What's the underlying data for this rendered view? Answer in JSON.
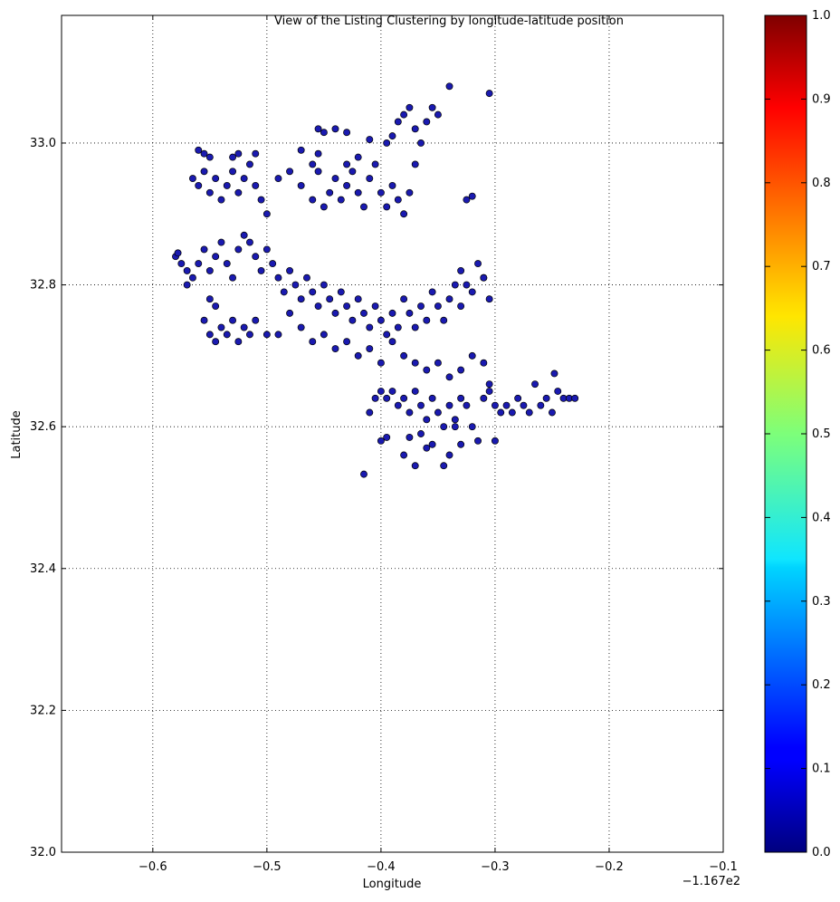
{
  "chart_data": {
    "type": "scatter",
    "title": "View of the Listing Clustering by longitude-latitude position",
    "xlabel": "Longitude",
    "ylabel": "Latitude",
    "x_offset_label": "−1.167e2",
    "x_note": "x values are offsets from -116.7 as printed on the axis",
    "xlim": [
      -0.68,
      -0.1
    ],
    "ylim": [
      32.0,
      33.18
    ],
    "xticks": [
      -0.6,
      -0.5,
      -0.4,
      -0.3,
      -0.2,
      -0.1
    ],
    "xtick_labels": [
      "−0.6",
      "−0.5",
      "−0.4",
      "−0.3",
      "−0.2",
      "−0.1"
    ],
    "yticks": [
      32.0,
      32.2,
      32.4,
      32.6,
      32.8,
      33.0
    ],
    "ytick_labels": [
      "32.0",
      "32.2",
      "32.4",
      "32.6",
      "32.8",
      "33.0"
    ],
    "grid": true,
    "marker_color": "#1a1ab0",
    "colorbar": {
      "colormap": "jet",
      "range": [
        0.0,
        1.0
      ],
      "ticks": [
        0.0,
        0.1,
        0.2,
        0.3,
        0.4,
        0.5,
        0.6,
        0.7,
        0.8,
        0.9,
        1.0
      ],
      "tick_labels": [
        "0.0",
        "0.1",
        "0.2",
        "0.3",
        "0.4",
        "0.5",
        "0.6",
        "0.7",
        "0.8",
        "0.9",
        "1.0"
      ]
    },
    "points": [
      [
        -0.58,
        32.84
      ],
      [
        -0.575,
        32.83
      ],
      [
        -0.57,
        32.82
      ],
      [
        -0.578,
        32.845
      ],
      [
        -0.565,
        32.81
      ],
      [
        -0.56,
        32.83
      ],
      [
        -0.555,
        32.85
      ],
      [
        -0.57,
        32.8
      ],
      [
        -0.55,
        32.82
      ],
      [
        -0.545,
        32.84
      ],
      [
        -0.54,
        32.86
      ],
      [
        -0.535,
        32.83
      ],
      [
        -0.53,
        32.81
      ],
      [
        -0.525,
        32.85
      ],
      [
        -0.52,
        32.87
      ],
      [
        -0.515,
        32.86
      ],
      [
        -0.51,
        32.84
      ],
      [
        -0.505,
        32.82
      ],
      [
        -0.5,
        32.85
      ],
      [
        -0.495,
        32.83
      ],
      [
        -0.49,
        32.81
      ],
      [
        -0.485,
        32.79
      ],
      [
        -0.48,
        32.82
      ],
      [
        -0.475,
        32.8
      ],
      [
        -0.47,
        32.78
      ],
      [
        -0.465,
        32.81
      ],
      [
        -0.46,
        32.79
      ],
      [
        -0.455,
        32.77
      ],
      [
        -0.45,
        32.8
      ],
      [
        -0.445,
        32.78
      ],
      [
        -0.44,
        32.76
      ],
      [
        -0.435,
        32.79
      ],
      [
        -0.43,
        32.77
      ],
      [
        -0.425,
        32.75
      ],
      [
        -0.42,
        32.78
      ],
      [
        -0.415,
        32.76
      ],
      [
        -0.41,
        32.74
      ],
      [
        -0.405,
        32.77
      ],
      [
        -0.4,
        32.75
      ],
      [
        -0.395,
        32.73
      ],
      [
        -0.39,
        32.76
      ],
      [
        -0.385,
        32.74
      ],
      [
        -0.38,
        32.78
      ],
      [
        -0.375,
        32.76
      ],
      [
        -0.37,
        32.74
      ],
      [
        -0.365,
        32.77
      ],
      [
        -0.36,
        32.75
      ],
      [
        -0.355,
        32.79
      ],
      [
        -0.35,
        32.77
      ],
      [
        -0.345,
        32.75
      ],
      [
        -0.34,
        32.78
      ],
      [
        -0.335,
        32.8
      ],
      [
        -0.33,
        32.77
      ],
      [
        -0.32,
        32.79
      ],
      [
        -0.31,
        32.81
      ],
      [
        -0.305,
        32.78
      ],
      [
        -0.555,
        32.75
      ],
      [
        -0.55,
        32.73
      ],
      [
        -0.545,
        32.72
      ],
      [
        -0.54,
        32.74
      ],
      [
        -0.535,
        32.73
      ],
      [
        -0.53,
        32.75
      ],
      [
        -0.525,
        32.72
      ],
      [
        -0.52,
        32.74
      ],
      [
        -0.515,
        32.73
      ],
      [
        -0.51,
        32.75
      ],
      [
        -0.55,
        32.78
      ],
      [
        -0.545,
        32.77
      ],
      [
        -0.5,
        32.73
      ],
      [
        -0.49,
        32.73
      ],
      [
        -0.48,
        32.76
      ],
      [
        -0.47,
        32.74
      ],
      [
        -0.46,
        32.72
      ],
      [
        -0.45,
        32.73
      ],
      [
        -0.44,
        32.71
      ],
      [
        -0.43,
        32.72
      ],
      [
        -0.42,
        32.7
      ],
      [
        -0.41,
        32.71
      ],
      [
        -0.4,
        32.69
      ],
      [
        -0.39,
        32.72
      ],
      [
        -0.38,
        32.7
      ],
      [
        -0.37,
        32.69
      ],
      [
        -0.36,
        32.68
      ],
      [
        -0.35,
        32.69
      ],
      [
        -0.34,
        32.67
      ],
      [
        -0.33,
        32.68
      ],
      [
        -0.32,
        32.7
      ],
      [
        -0.31,
        32.69
      ],
      [
        -0.305,
        32.66
      ],
      [
        -0.565,
        32.95
      ],
      [
        -0.56,
        32.94
      ],
      [
        -0.555,
        32.96
      ],
      [
        -0.55,
        32.93
      ],
      [
        -0.545,
        32.95
      ],
      [
        -0.54,
        32.92
      ],
      [
        -0.535,
        32.94
      ],
      [
        -0.53,
        32.96
      ],
      [
        -0.525,
        32.93
      ],
      [
        -0.52,
        32.95
      ],
      [
        -0.515,
        32.97
      ],
      [
        -0.51,
        32.94
      ],
      [
        -0.505,
        32.92
      ],
      [
        -0.5,
        32.9
      ],
      [
        -0.49,
        32.95
      ],
      [
        -0.48,
        32.96
      ],
      [
        -0.47,
        32.94
      ],
      [
        -0.46,
        32.92
      ],
      [
        -0.455,
        32.96
      ],
      [
        -0.45,
        32.91
      ],
      [
        -0.445,
        32.93
      ],
      [
        -0.44,
        32.95
      ],
      [
        -0.435,
        32.92
      ],
      [
        -0.43,
        32.94
      ],
      [
        -0.425,
        32.96
      ],
      [
        -0.42,
        32.93
      ],
      [
        -0.415,
        32.91
      ],
      [
        -0.41,
        32.95
      ],
      [
        -0.405,
        32.97
      ],
      [
        -0.4,
        32.93
      ],
      [
        -0.395,
        32.91
      ],
      [
        -0.39,
        32.94
      ],
      [
        -0.385,
        32.92
      ],
      [
        -0.38,
        32.9
      ],
      [
        -0.375,
        32.93
      ],
      [
        -0.56,
        32.99
      ],
      [
        -0.555,
        32.985
      ],
      [
        -0.53,
        32.98
      ],
      [
        -0.525,
        32.985
      ],
      [
        -0.47,
        32.99
      ],
      [
        -0.455,
        32.985
      ],
      [
        -0.55,
        32.98
      ],
      [
        -0.51,
        32.985
      ],
      [
        -0.46,
        32.97
      ],
      [
        -0.43,
        32.97
      ],
      [
        -0.42,
        32.98
      ],
      [
        -0.455,
        33.02
      ],
      [
        -0.45,
        33.015
      ],
      [
        -0.44,
        33.02
      ],
      [
        -0.43,
        33.015
      ],
      [
        -0.41,
        33.005
      ],
      [
        -0.395,
        33.0
      ],
      [
        -0.39,
        33.01
      ],
      [
        -0.385,
        33.03
      ],
      [
        -0.38,
        33.04
      ],
      [
        -0.375,
        33.05
      ],
      [
        -0.37,
        33.02
      ],
      [
        -0.365,
        33.0
      ],
      [
        -0.36,
        33.03
      ],
      [
        -0.355,
        33.05
      ],
      [
        -0.35,
        33.04
      ],
      [
        -0.34,
        33.08
      ],
      [
        -0.305,
        33.07
      ],
      [
        -0.37,
        32.97
      ],
      [
        -0.325,
        32.92
      ],
      [
        -0.32,
        32.925
      ],
      [
        -0.33,
        32.82
      ],
      [
        -0.31,
        32.81
      ],
      [
        -0.315,
        32.83
      ],
      [
        -0.325,
        32.8
      ],
      [
        -0.4,
        32.65
      ],
      [
        -0.395,
        32.64
      ],
      [
        -0.39,
        32.65
      ],
      [
        -0.385,
        32.63
      ],
      [
        -0.38,
        32.64
      ],
      [
        -0.375,
        32.62
      ],
      [
        -0.37,
        32.65
      ],
      [
        -0.365,
        32.63
      ],
      [
        -0.36,
        32.61
      ],
      [
        -0.355,
        32.64
      ],
      [
        -0.35,
        32.62
      ],
      [
        -0.345,
        32.6
      ],
      [
        -0.34,
        32.63
      ],
      [
        -0.335,
        32.61
      ],
      [
        -0.33,
        32.64
      ],
      [
        -0.325,
        32.63
      ],
      [
        -0.32,
        32.6
      ],
      [
        -0.31,
        32.64
      ],
      [
        -0.305,
        32.65
      ],
      [
        -0.3,
        32.63
      ],
      [
        -0.295,
        32.62
      ],
      [
        -0.29,
        32.63
      ],
      [
        -0.285,
        32.62
      ],
      [
        -0.28,
        32.64
      ],
      [
        -0.275,
        32.63
      ],
      [
        -0.27,
        32.62
      ],
      [
        -0.265,
        32.66
      ],
      [
        -0.26,
        32.63
      ],
      [
        -0.255,
        32.64
      ],
      [
        -0.25,
        32.62
      ],
      [
        -0.245,
        32.65
      ],
      [
        -0.24,
        32.64
      ],
      [
        -0.235,
        32.64
      ],
      [
        -0.23,
        32.64
      ],
      [
        -0.248,
        32.675
      ],
      [
        -0.405,
        32.64
      ],
      [
        -0.41,
        32.62
      ],
      [
        -0.395,
        32.585
      ],
      [
        -0.4,
        32.58
      ],
      [
        -0.38,
        32.56
      ],
      [
        -0.375,
        32.585
      ],
      [
        -0.37,
        32.545
      ],
      [
        -0.36,
        32.57
      ],
      [
        -0.355,
        32.575
      ],
      [
        -0.345,
        32.545
      ],
      [
        -0.34,
        32.56
      ],
      [
        -0.335,
        32.6
      ],
      [
        -0.33,
        32.575
      ],
      [
        -0.315,
        32.58
      ],
      [
        -0.3,
        32.58
      ],
      [
        -0.415,
        32.533
      ],
      [
        -0.365,
        32.59
      ]
    ]
  }
}
